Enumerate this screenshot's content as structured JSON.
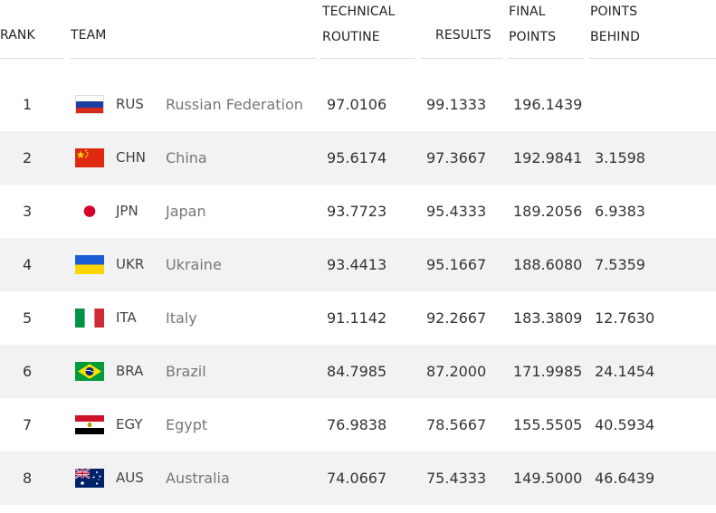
{
  "header": {
    "rank": "RANK",
    "team": "TEAM",
    "technical_routine": [
      "TECHNICAL",
      "ROUTINE"
    ],
    "results": "RESULTS",
    "final_points": [
      "FINAL",
      "POINTS"
    ],
    "points_behind": [
      "POINTS",
      "BEHIND"
    ]
  },
  "rows": [
    {
      "rank": "1",
      "code": "RUS",
      "name": "Russian Federation",
      "flag": "russia-flag-icon",
      "technical": "97.0106",
      "results": "99.1333",
      "final": "196.1439",
      "behind": ""
    },
    {
      "rank": "2",
      "code": "CHN",
      "name": "China",
      "flag": "china-flag-icon",
      "technical": "95.6174",
      "results": "97.3667",
      "final": "192.9841",
      "behind": "3.1598"
    },
    {
      "rank": "3",
      "code": "JPN",
      "name": "Japan",
      "flag": "japan-flag-icon",
      "technical": "93.7723",
      "results": "95.4333",
      "final": "189.2056",
      "behind": "6.9383"
    },
    {
      "rank": "4",
      "code": "UKR",
      "name": "Ukraine",
      "flag": "ukraine-flag-icon",
      "technical": "93.4413",
      "results": "95.1667",
      "final": "188.6080",
      "behind": "7.5359"
    },
    {
      "rank": "5",
      "code": "ITA",
      "name": "Italy",
      "flag": "italy-flag-icon",
      "technical": "91.1142",
      "results": "92.2667",
      "final": "183.3809",
      "behind": "12.7630"
    },
    {
      "rank": "6",
      "code": "BRA",
      "name": "Brazil",
      "flag": "brazil-flag-icon",
      "technical": "84.7985",
      "results": "87.2000",
      "final": "171.9985",
      "behind": "24.1454"
    },
    {
      "rank": "7",
      "code": "EGY",
      "name": "Egypt",
      "flag": "egypt-flag-icon",
      "technical": "76.9838",
      "results": "78.5667",
      "final": "155.5505",
      "behind": "40.5934"
    },
    {
      "rank": "8",
      "code": "AUS",
      "name": "Australia",
      "flag": "australia-flag-icon",
      "technical": "74.0667",
      "results": "75.4333",
      "final": "149.5000",
      "behind": "46.6439"
    }
  ]
}
